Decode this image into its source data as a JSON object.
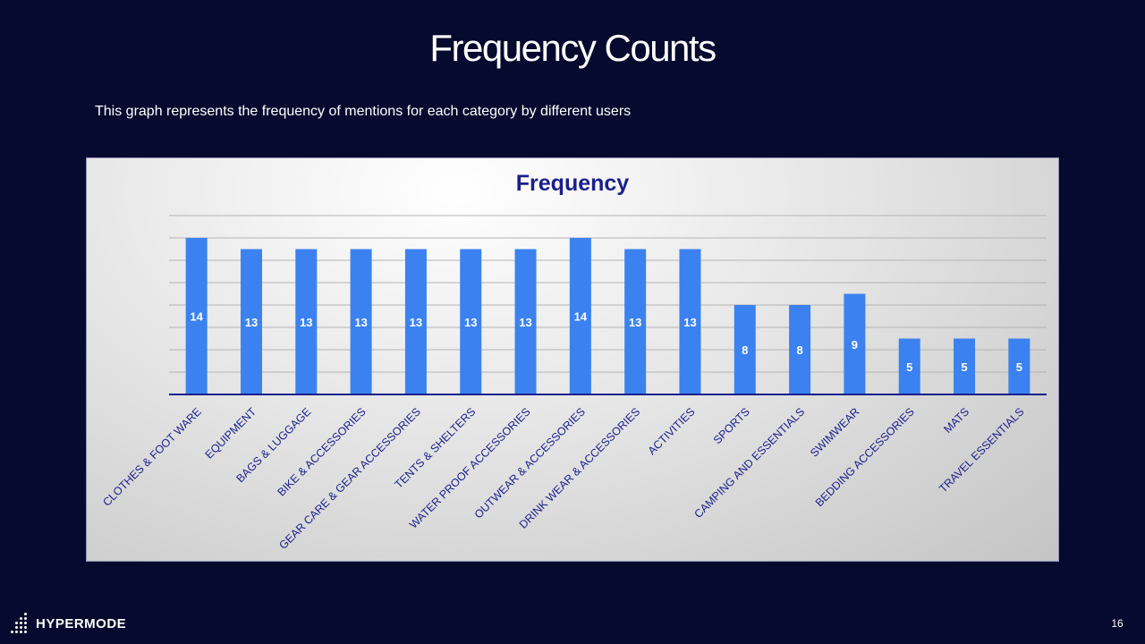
{
  "slide": {
    "title": "Frequency Counts",
    "subtitle": "This graph represents the frequency of mentions for each category by different users",
    "page_number": "16"
  },
  "brand": {
    "logo_text": "HYPERMODE",
    "logo_icon": "dot-grid-icon"
  },
  "colors": {
    "background": "#050a2e",
    "bar": "#3b82f0",
    "title": "#1a1f8c",
    "axis": "#1a1f8c"
  },
  "chart_data": {
    "type": "bar",
    "title": "Frequency",
    "categories": [
      "CLOTHES & FOOT WARE",
      "EQUIPMENT",
      "BAGS & LUGGAGE",
      "BIKE & ACCESSORIES",
      "GEAR CARE & GEAR ACCESSORIES",
      "TENTS & SHELTERS",
      "WATER PROOF ACCESSORIES",
      "OUTWEAR & ACCESSORIES",
      "DRINK WEAR & ACCESSORIES",
      "ACTIVITIES",
      "SPORTS",
      "CAMPING AND ESSENTIALS",
      "SWIMWEAR",
      "BEDDING ACCESSORIES",
      "MATS",
      "TRAVEL ESSENTIALS"
    ],
    "values": [
      14,
      13,
      13,
      13,
      13,
      13,
      13,
      14,
      13,
      13,
      8,
      8,
      9,
      5,
      5,
      5
    ],
    "ylim": [
      0,
      16
    ],
    "grid": true,
    "data_labels": true,
    "xlabel": "",
    "ylabel": ""
  }
}
